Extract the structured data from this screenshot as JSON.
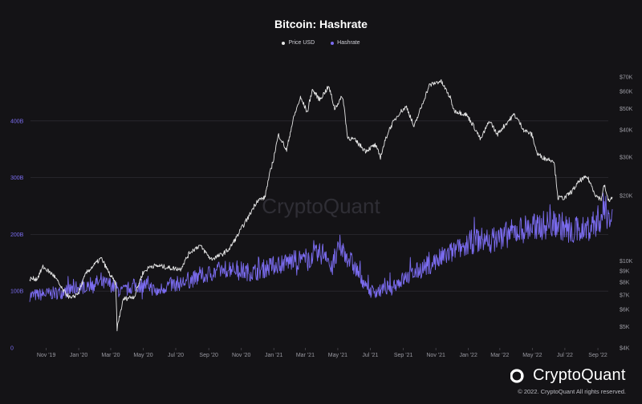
{
  "colors": {
    "price": "#e6e6e6",
    "hashrate": "#7b6cf0",
    "grid": "#2b2a31",
    "left_axis_text": "#7b6cf0",
    "right_axis_text": "#9a9aa2",
    "watermark": "#2f2e35"
  },
  "watermark": "CryptoQuant",
  "brand": {
    "name": "CryptoQuant",
    "copyright": "© 2022. CryptoQuant All rights reserved.",
    "logo_icon": "cryptoquant-logo-icon"
  },
  "chart_data": {
    "type": "line",
    "title": "Bitcoin: Hashrate",
    "legend": {
      "position": "top-center"
    },
    "grid": {
      "horizontal": true,
      "vertical": false
    },
    "x_range": [
      "2019-10-01",
      "2022-10-01"
    ],
    "x_ticks": [
      {
        "label": "Nov '19",
        "date": "2019-11-01"
      },
      {
        "label": "Jan '20",
        "date": "2020-01-01"
      },
      {
        "label": "Mar '20",
        "date": "2020-03-01"
      },
      {
        "label": "May '20",
        "date": "2020-05-01"
      },
      {
        "label": "Jul '20",
        "date": "2020-07-01"
      },
      {
        "label": "Sep '20",
        "date": "2020-09-01"
      },
      {
        "label": "Nov '20",
        "date": "2020-11-01"
      },
      {
        "label": "Jan '21",
        "date": "2021-01-01"
      },
      {
        "label": "Mar '21",
        "date": "2021-03-01"
      },
      {
        "label": "May '21",
        "date": "2021-05-01"
      },
      {
        "label": "Jul '21",
        "date": "2021-07-01"
      },
      {
        "label": "Sep '21",
        "date": "2021-09-01"
      },
      {
        "label": "Nov '21",
        "date": "2021-11-01"
      },
      {
        "label": "Jan '22",
        "date": "2022-01-01"
      },
      {
        "label": "Mar '22",
        "date": "2022-03-01"
      },
      {
        "label": "May '22",
        "date": "2022-05-01"
      },
      {
        "label": "Jul '22",
        "date": "2022-07-01"
      },
      {
        "label": "Sep '22",
        "date": "2022-09-01"
      }
    ],
    "y_left": {
      "scale": "linear",
      "range": [
        0,
        500
      ],
      "ticks": [
        {
          "label": "0",
          "value": 0
        },
        {
          "label": "100B",
          "value": 100
        },
        {
          "label": "200B",
          "value": 200
        },
        {
          "label": "300B",
          "value": 300
        },
        {
          "label": "400B",
          "value": 400
        }
      ]
    },
    "y_right": {
      "scale": "log",
      "range": [
        4000,
        80000
      ],
      "ticks": [
        {
          "label": "$70K",
          "value": 70000
        },
        {
          "label": "$60K",
          "value": 60000
        },
        {
          "label": "$50K",
          "value": 50000
        },
        {
          "label": "$40K",
          "value": 40000
        },
        {
          "label": "$30K",
          "value": 30000
        },
        {
          "label": "$20K",
          "value": 20000
        },
        {
          "label": "$10K",
          "value": 10000
        },
        {
          "label": "$9K",
          "value": 9000
        },
        {
          "label": "$8K",
          "value": 8000
        },
        {
          "label": "$7K",
          "value": 7000
        },
        {
          "label": "$6K",
          "value": 6000
        },
        {
          "label": "$5K",
          "value": 5000
        },
        {
          "label": "$4K",
          "value": 4000
        }
      ]
    },
    "series": [
      {
        "name": "Price USD",
        "axis": "right",
        "points": [
          [
            "2019-10-01",
            8300
          ],
          [
            "2019-10-15",
            8300
          ],
          [
            "2019-10-26",
            9400
          ],
          [
            "2019-11-15",
            8600
          ],
          [
            "2019-12-01",
            7400
          ],
          [
            "2019-12-18",
            6700
          ],
          [
            "2020-01-01",
            7200
          ],
          [
            "2020-01-15",
            8800
          ],
          [
            "2020-02-12",
            10300
          ],
          [
            "2020-02-28",
            8700
          ],
          [
            "2020-03-10",
            7900
          ],
          [
            "2020-03-13",
            4900
          ],
          [
            "2020-03-25",
            6700
          ],
          [
            "2020-04-15",
            6900
          ],
          [
            "2020-04-30",
            8800
          ],
          [
            "2020-05-15",
            9500
          ],
          [
            "2020-06-01",
            9500
          ],
          [
            "2020-06-20",
            9300
          ],
          [
            "2020-07-10",
            9200
          ],
          [
            "2020-07-28",
            11000
          ],
          [
            "2020-08-15",
            11800
          ],
          [
            "2020-09-05",
            10200
          ],
          [
            "2020-09-25",
            10700
          ],
          [
            "2020-10-10",
            11400
          ],
          [
            "2020-10-25",
            13100
          ],
          [
            "2020-11-15",
            16000
          ],
          [
            "2020-12-01",
            19000
          ],
          [
            "2020-12-15",
            19500
          ],
          [
            "2020-12-31",
            29000
          ],
          [
            "2021-01-10",
            38000
          ],
          [
            "2021-01-25",
            32000
          ],
          [
            "2021-02-08",
            46000
          ],
          [
            "2021-02-20",
            56000
          ],
          [
            "2021-03-05",
            48000
          ],
          [
            "2021-03-14",
            61000
          ],
          [
            "2021-03-28",
            55000
          ],
          [
            "2021-04-14",
            63000
          ],
          [
            "2021-04-25",
            50000
          ],
          [
            "2021-05-10",
            57000
          ],
          [
            "2021-05-19",
            37000
          ],
          [
            "2021-06-01",
            36000
          ],
          [
            "2021-06-22",
            32000
          ],
          [
            "2021-07-10",
            34000
          ],
          [
            "2021-07-20",
            30000
          ],
          [
            "2021-08-05",
            40000
          ],
          [
            "2021-08-25",
            48000
          ],
          [
            "2021-09-07",
            51000
          ],
          [
            "2021-09-21",
            41000
          ],
          [
            "2021-10-05",
            51000
          ],
          [
            "2021-10-20",
            64000
          ],
          [
            "2021-11-10",
            67000
          ],
          [
            "2021-11-28",
            56000
          ],
          [
            "2021-12-05",
            49000
          ],
          [
            "2021-12-28",
            47000
          ],
          [
            "2022-01-10",
            42000
          ],
          [
            "2022-01-24",
            36000
          ],
          [
            "2022-02-10",
            44000
          ],
          [
            "2022-02-24",
            38000
          ],
          [
            "2022-03-28",
            47000
          ],
          [
            "2022-04-15",
            40000
          ],
          [
            "2022-04-30",
            38000
          ],
          [
            "2022-05-10",
            31000
          ],
          [
            "2022-05-25",
            29500
          ],
          [
            "2022-06-10",
            29000
          ],
          [
            "2022-06-18",
            19500
          ],
          [
            "2022-07-01",
            19500
          ],
          [
            "2022-07-15",
            21000
          ],
          [
            "2022-07-30",
            23500
          ],
          [
            "2022-08-12",
            24300
          ],
          [
            "2022-08-28",
            20000
          ],
          [
            "2022-09-07",
            19200
          ],
          [
            "2022-09-13",
            22300
          ],
          [
            "2022-09-20",
            19000
          ],
          [
            "2022-09-28",
            19400
          ]
        ]
      },
      {
        "name": "Hashrate",
        "axis": "left",
        "points": [
          [
            "2019-10-01",
            92
          ],
          [
            "2019-11-01",
            95
          ],
          [
            "2019-12-01",
            98
          ],
          [
            "2020-01-01",
            107
          ],
          [
            "2020-02-01",
            115
          ],
          [
            "2020-03-01",
            112
          ],
          [
            "2020-03-20",
            98
          ],
          [
            "2020-04-10",
            108
          ],
          [
            "2020-05-10",
            112
          ],
          [
            "2020-05-25",
            98
          ],
          [
            "2020-06-15",
            110
          ],
          [
            "2020-07-15",
            115
          ],
          [
            "2020-08-15",
            125
          ],
          [
            "2020-09-15",
            135
          ],
          [
            "2020-10-15",
            142
          ],
          [
            "2020-11-05",
            135
          ],
          [
            "2020-11-25",
            133
          ],
          [
            "2020-12-15",
            140
          ],
          [
            "2021-01-15",
            150
          ],
          [
            "2021-02-15",
            155
          ],
          [
            "2021-03-15",
            160
          ],
          [
            "2021-04-10",
            170
          ],
          [
            "2021-04-18",
            135
          ],
          [
            "2021-05-05",
            178
          ],
          [
            "2021-05-20",
            160
          ],
          [
            "2021-06-10",
            130
          ],
          [
            "2021-06-30",
            100
          ],
          [
            "2021-07-20",
            100
          ],
          [
            "2021-08-15",
            112
          ],
          [
            "2021-09-15",
            128
          ],
          [
            "2021-10-15",
            145
          ],
          [
            "2021-11-15",
            160
          ],
          [
            "2021-12-15",
            175
          ],
          [
            "2022-01-15",
            190
          ],
          [
            "2022-02-15",
            190
          ],
          [
            "2022-03-15",
            200
          ],
          [
            "2022-04-15",
            210
          ],
          [
            "2022-05-15",
            215
          ],
          [
            "2022-06-15",
            220
          ],
          [
            "2022-07-15",
            205
          ],
          [
            "2022-08-15",
            212
          ],
          [
            "2022-09-01",
            225
          ],
          [
            "2022-09-15",
            240
          ],
          [
            "2022-09-28",
            228
          ]
        ]
      }
    ]
  }
}
